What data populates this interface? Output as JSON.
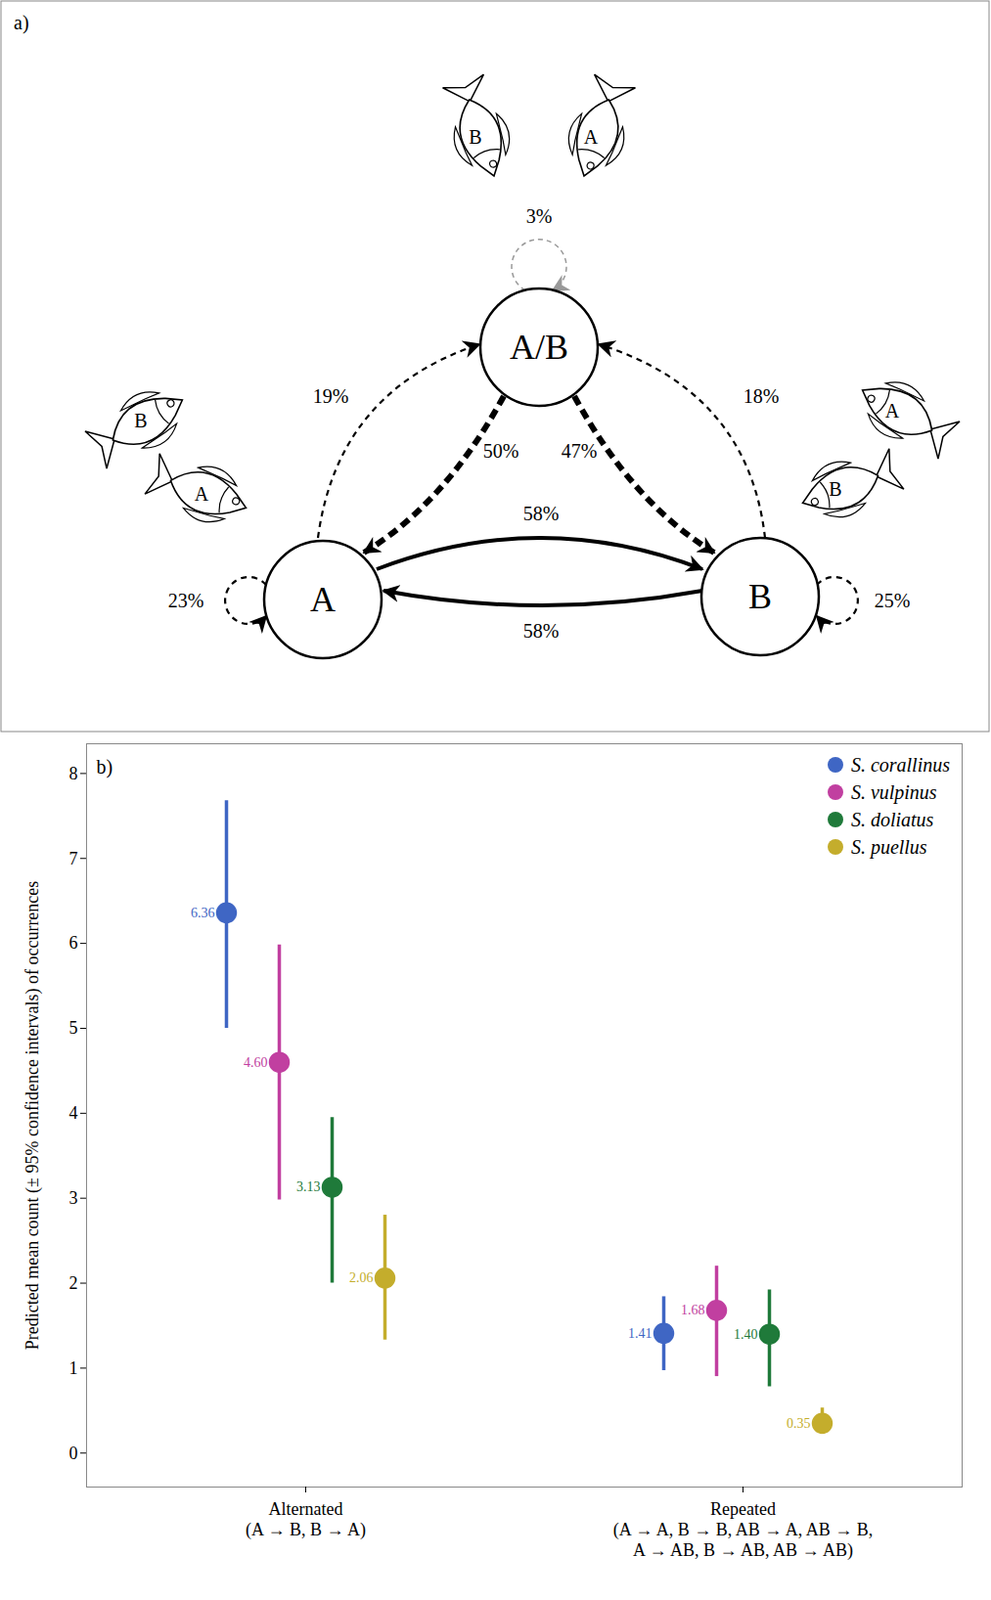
{
  "diagram": {
    "label": "a)",
    "nodes": [
      {
        "id": "AB",
        "label": "A/B"
      },
      {
        "id": "A",
        "label": "A"
      },
      {
        "id": "B",
        "label": "B"
      }
    ],
    "edges": [
      {
        "from": "AB",
        "to": "AB",
        "label": "3%",
        "line_style": "light-dashed"
      },
      {
        "from": "A",
        "to": "AB",
        "label": "19%",
        "line_style": "dashed"
      },
      {
        "from": "AB",
        "to": "A",
        "label": "50%",
        "line_style": "bold-dashed"
      },
      {
        "from": "AB",
        "to": "B",
        "label": "47%",
        "line_style": "bold-dashed"
      },
      {
        "from": "B",
        "to": "AB",
        "label": "18%",
        "line_style": "dashed"
      },
      {
        "from": "A",
        "to": "B",
        "label": "58%",
        "line_style": "solid"
      },
      {
        "from": "B",
        "to": "A",
        "label": "58%",
        "line_style": "solid"
      },
      {
        "from": "A",
        "to": "A",
        "label": "23%",
        "line_style": "dashed"
      },
      {
        "from": "B",
        "to": "B",
        "label": "25%",
        "line_style": "dashed"
      }
    ],
    "fish_pairs": [
      {
        "node": "AB",
        "fish": [
          "B",
          "A"
        ]
      },
      {
        "node": "A",
        "fish": [
          "B",
          "A"
        ]
      },
      {
        "node": "B",
        "fish": [
          "A",
          "B"
        ]
      }
    ]
  },
  "chart_data": {
    "type": "dot_errorbar",
    "label": "b)",
    "ylabel": "Predicted mean count (± 95% confidence intervals) of occurrences",
    "categories": [
      "Alternated\n(A → B, B → A)",
      "Repeated\n(A → A, B → B, AB → A, AB → B,\nA → AB, B → AB, AB → AB)"
    ],
    "ylim": [
      -0.4,
      8.35
    ],
    "yticks": [
      0,
      1,
      2,
      3,
      4,
      5,
      6,
      7,
      8
    ],
    "legend": "top-right",
    "data_labels": true,
    "series": [
      {
        "name": "S. corallinus",
        "color": "#3f66c4",
        "values": [
          6.36,
          1.41
        ],
        "value_labels": [
          "6.36",
          "1.41"
        ],
        "ci_low": [
          5.0,
          0.97
        ],
        "ci_high": [
          7.68,
          1.84
        ]
      },
      {
        "name": "S. vulpinus",
        "color": "#c13fa0",
        "values": [
          4.6,
          1.68
        ],
        "value_labels": [
          "4.60",
          "1.68"
        ],
        "ci_low": [
          2.98,
          0.9
        ],
        "ci_high": [
          5.98,
          2.2
        ]
      },
      {
        "name": "S. doliatus",
        "color": "#1f7a3a",
        "values": [
          3.13,
          1.4
        ],
        "value_labels": [
          "3.13",
          "1.40"
        ],
        "ci_low": [
          2.0,
          0.78
        ],
        "ci_high": [
          3.95,
          1.92
        ]
      },
      {
        "name": "S. puellus",
        "color": "#c4ad2c",
        "values": [
          2.06,
          0.35
        ],
        "value_labels": [
          "2.06",
          "0.35"
        ],
        "ci_low": [
          1.33,
          0.22
        ],
        "ci_high": [
          2.8,
          0.53
        ]
      }
    ]
  }
}
